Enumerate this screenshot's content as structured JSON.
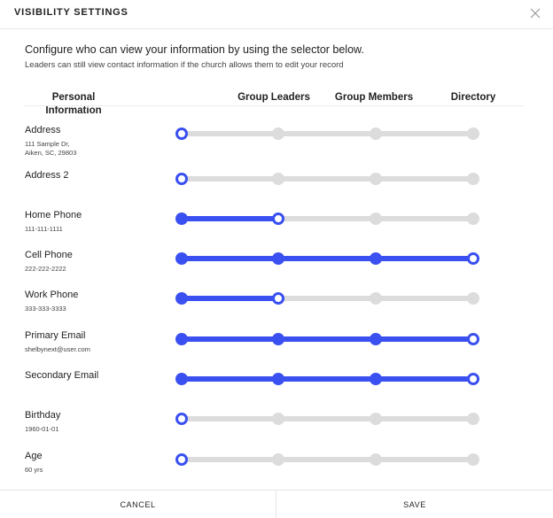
{
  "modal": {
    "title": "VISIBILITY SETTINGS",
    "close_icon": "close-icon",
    "intro": "Configure who can view your information by using the selector below.",
    "note": "Leaders can still view contact information if the church allows them to edit your record"
  },
  "columns": {
    "personal": "Personal Information",
    "group_leaders": "Group Leaders",
    "group_members": "Group Members",
    "directory": "Directory"
  },
  "levels": [
    "Personal Information",
    "Group Leaders",
    "Group Members",
    "Directory"
  ],
  "rows": [
    {
      "label": "Address",
      "value": "111 Sample Dr,\nAiken, SC, 29803",
      "level": 0
    },
    {
      "label": "Address 2",
      "value": "",
      "level": 0
    },
    {
      "label": "Home Phone",
      "value": "111-111-1111",
      "level": 1
    },
    {
      "label": "Cell Phone",
      "value": "222-222-2222",
      "level": 3
    },
    {
      "label": "Work Phone",
      "value": "333-333-3333",
      "level": 1
    },
    {
      "label": "Primary Email",
      "value": "shelbynext@user.com",
      "level": 3
    },
    {
      "label": "Secondary Email",
      "value": "",
      "level": 3
    },
    {
      "label": "Birthday",
      "value": "1960-01-01",
      "level": 0
    },
    {
      "label": "Age",
      "value": "60 yrs",
      "level": 0
    }
  ],
  "footer": {
    "cancel": "CANCEL",
    "save": "SAVE"
  },
  "colors": {
    "accent": "#3a50f0",
    "track": "#dcdcdc"
  }
}
